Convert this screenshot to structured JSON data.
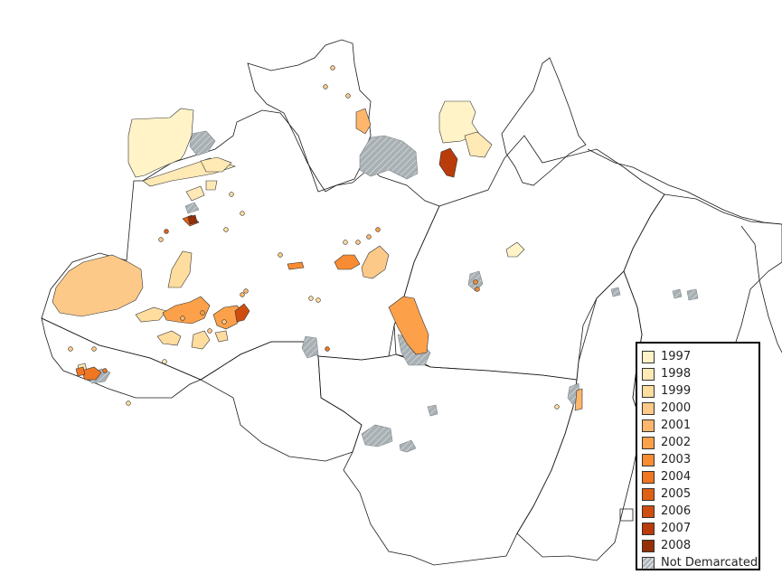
{
  "map": {
    "colors": {
      "boundary": "#1a1a1a",
      "land": "#ffffff",
      "not_demarcated": "#a8b0b4"
    }
  },
  "legend": {
    "items": [
      {
        "label": "1997",
        "color": "#fff3c7"
      },
      {
        "label": "1998",
        "color": "#ffe9b5"
      },
      {
        "label": "1999",
        "color": "#fedd9e"
      },
      {
        "label": "2000",
        "color": "#fdc988"
      },
      {
        "label": "2001",
        "color": "#fdb66b"
      },
      {
        "label": "2002",
        "color": "#fca14a"
      },
      {
        "label": "2003",
        "color": "#f98c32"
      },
      {
        "label": "2004",
        "color": "#f07621"
      },
      {
        "label": "2005",
        "color": "#e06016"
      },
      {
        "label": "2006",
        "color": "#cf4d0f"
      },
      {
        "label": "2007",
        "color": "#b93c0a"
      },
      {
        "label": "2008",
        "color": "#952f08"
      },
      {
        "label": "Not Demarcated",
        "color": "#a8b0b4",
        "pattern": "hatch"
      }
    ]
  }
}
